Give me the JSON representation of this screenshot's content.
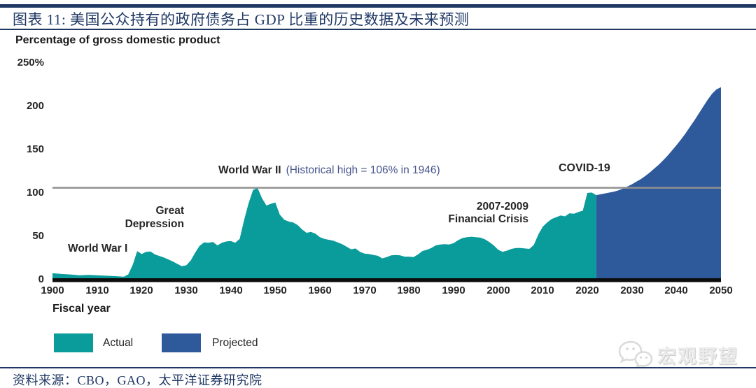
{
  "header": {
    "title": "图表 11:  美国公众持有的政府债务占 GDP 比重的历史数据及未来预测"
  },
  "footer": {
    "source": "资料来源：CBO，GAO，太平洋证券研究院"
  },
  "watermark": {
    "icon": "wechat-icon",
    "text": "宏观野望"
  },
  "legend": {
    "actual_label": "Actual",
    "projected_label": "Projected"
  },
  "colors": {
    "navy": "#1F3864",
    "actual_teal": "#0A9B9B",
    "projected_blue": "#2E5A9C",
    "reference_gray": "#919191",
    "axis_black": "#0D0D0D",
    "annotation_note_slate": "#47558C"
  },
  "chart_data": {
    "type": "area",
    "title": "美国公众持有的政府债务占 GDP 比重的历史数据及未来预测",
    "subtitle": "Percentage of gross domestic product",
    "xlabel": "Fiscal year",
    "ylabel": "Percentage of gross domestic product",
    "xlim": [
      1900,
      2050
    ],
    "ylim": [
      0,
      250
    ],
    "grid": false,
    "legend_position": "bottom-left",
    "x_ticks": [
      1900,
      1910,
      1920,
      1930,
      1940,
      1950,
      1960,
      1970,
      1980,
      1990,
      2000,
      2010,
      2020,
      2030,
      2040,
      2050
    ],
    "y_ticks": [
      {
        "value": 0,
        "label": "0"
      },
      {
        "value": 50,
        "label": "50"
      },
      {
        "value": 100,
        "label": "100"
      },
      {
        "value": 150,
        "label": "150"
      },
      {
        "value": 200,
        "label": "200"
      },
      {
        "value": 250,
        "label": "250%"
      }
    ],
    "reference_line": {
      "value": 106,
      "note": "Historical high = 106% in 1946"
    },
    "annotations": [
      {
        "id": "world-war-1",
        "text": "World War I"
      },
      {
        "id": "great-depression",
        "lines": [
          "Great",
          "Depression"
        ]
      },
      {
        "id": "world-war-2",
        "bold": "World War II",
        "note": "(Historical high = 106% in 1946)"
      },
      {
        "id": "financial-crisis",
        "lines": [
          "2007-2009",
          "Financial Crisis"
        ]
      },
      {
        "id": "covid-19",
        "text": "COVID-19"
      }
    ],
    "series": [
      {
        "name": "Actual",
        "color": "#0A9B9B",
        "points": [
          [
            1900,
            7.5
          ],
          [
            1902,
            6.5
          ],
          [
            1904,
            6
          ],
          [
            1906,
            5
          ],
          [
            1908,
            5.5
          ],
          [
            1910,
            5
          ],
          [
            1912,
            4.5
          ],
          [
            1914,
            4
          ],
          [
            1916,
            3.5
          ],
          [
            1917,
            6
          ],
          [
            1918,
            17
          ],
          [
            1919,
            33
          ],
          [
            1920,
            29.5
          ],
          [
            1921,
            32
          ],
          [
            1922,
            32.5
          ],
          [
            1923,
            29
          ],
          [
            1925,
            25.5
          ],
          [
            1927,
            21
          ],
          [
            1929,
            15.5
          ],
          [
            1930,
            16.5
          ],
          [
            1931,
            22
          ],
          [
            1932,
            31
          ],
          [
            1933,
            39
          ],
          [
            1934,
            43
          ],
          [
            1935,
            42.5
          ],
          [
            1936,
            43.5
          ],
          [
            1937,
            39.5
          ],
          [
            1938,
            42.5
          ],
          [
            1939,
            44
          ],
          [
            1940,
            44.5
          ],
          [
            1941,
            42.5
          ],
          [
            1942,
            47
          ],
          [
            1943,
            69
          ],
          [
            1944,
            88
          ],
          [
            1945,
            103.5
          ],
          [
            1946,
            106
          ],
          [
            1947,
            94
          ],
          [
            1948,
            85.5
          ],
          [
            1949,
            87.5
          ],
          [
            1950,
            89
          ],
          [
            1951,
            75
          ],
          [
            1952,
            69
          ],
          [
            1953,
            67
          ],
          [
            1954,
            66
          ],
          [
            1955,
            63
          ],
          [
            1956,
            58
          ],
          [
            1957,
            54
          ],
          [
            1958,
            55
          ],
          [
            1959,
            53
          ],
          [
            1960,
            49
          ],
          [
            1961,
            47
          ],
          [
            1962,
            46
          ],
          [
            1963,
            45
          ],
          [
            1964,
            43
          ],
          [
            1965,
            41
          ],
          [
            1966,
            38
          ],
          [
            1967,
            35
          ],
          [
            1968,
            36
          ],
          [
            1969,
            32
          ],
          [
            1970,
            30
          ],
          [
            1971,
            29.5
          ],
          [
            1972,
            28.5
          ],
          [
            1973,
            27.5
          ],
          [
            1974,
            24.5
          ],
          [
            1975,
            26
          ],
          [
            1976,
            28
          ],
          [
            1977,
            28.5
          ],
          [
            1978,
            28
          ],
          [
            1979,
            26.5
          ],
          [
            1980,
            26.5
          ],
          [
            1981,
            26
          ],
          [
            1982,
            29
          ],
          [
            1983,
            33
          ],
          [
            1984,
            34.5
          ],
          [
            1985,
            36.5
          ],
          [
            1986,
            39.5
          ],
          [
            1987,
            40.5
          ],
          [
            1988,
            41
          ],
          [
            1989,
            40.5
          ],
          [
            1990,
            42
          ],
          [
            1991,
            45.5
          ],
          [
            1992,
            48
          ],
          [
            1993,
            49
          ],
          [
            1994,
            49.5
          ],
          [
            1995,
            49
          ],
          [
            1996,
            48.5
          ],
          [
            1997,
            46.5
          ],
          [
            1998,
            43.5
          ],
          [
            1999,
            39.5
          ],
          [
            2000,
            34.5
          ],
          [
            2001,
            32
          ],
          [
            2002,
            33.5
          ],
          [
            2003,
            35.5
          ],
          [
            2004,
            36.5
          ],
          [
            2005,
            36.5
          ],
          [
            2006,
            36
          ],
          [
            2007,
            35.5
          ],
          [
            2008,
            40
          ],
          [
            2009,
            52
          ],
          [
            2010,
            61
          ],
          [
            2011,
            66
          ],
          [
            2012,
            70
          ],
          [
            2013,
            72
          ],
          [
            2014,
            74
          ],
          [
            2015,
            73
          ],
          [
            2016,
            76.5
          ],
          [
            2017,
            76
          ],
          [
            2018,
            78
          ],
          [
            2019,
            79.5
          ],
          [
            2020,
            100
          ],
          [
            2021,
            100.5
          ],
          [
            2022,
            97.5
          ]
        ]
      },
      {
        "name": "Projected",
        "color": "#2E5A9C",
        "points": [
          [
            2022,
            97.5
          ],
          [
            2023,
            98.5
          ],
          [
            2024,
            99.5
          ],
          [
            2025,
            100.5
          ],
          [
            2026,
            101.5
          ],
          [
            2027,
            103
          ],
          [
            2028,
            105
          ],
          [
            2029,
            107.5
          ],
          [
            2030,
            110
          ],
          [
            2031,
            113
          ],
          [
            2032,
            116
          ],
          [
            2033,
            119.5
          ],
          [
            2034,
            123.5
          ],
          [
            2035,
            128
          ],
          [
            2036,
            132.5
          ],
          [
            2037,
            137.5
          ],
          [
            2038,
            143
          ],
          [
            2039,
            149
          ],
          [
            2040,
            155
          ],
          [
            2041,
            161.5
          ],
          [
            2042,
            168.5
          ],
          [
            2043,
            176
          ],
          [
            2044,
            183.5
          ],
          [
            2045,
            191.5
          ],
          [
            2046,
            199.5
          ],
          [
            2047,
            207.5
          ],
          [
            2048,
            214.5
          ],
          [
            2049,
            219.5
          ],
          [
            2050,
            222
          ]
        ]
      }
    ]
  }
}
